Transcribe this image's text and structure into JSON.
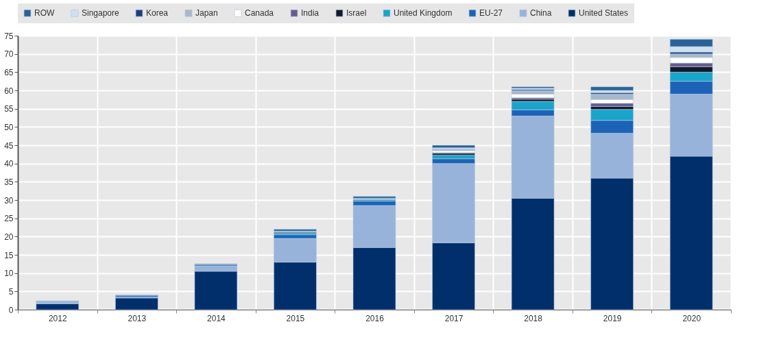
{
  "chart_data": {
    "type": "bar",
    "stacked": true,
    "categories": [
      "2012",
      "2013",
      "2014",
      "2015",
      "2016",
      "2017",
      "2018",
      "2019",
      "2020"
    ],
    "series": [
      {
        "name": "United States",
        "color": "#002f6c",
        "values": [
          1.6,
          3.2,
          10.5,
          13,
          17,
          18.3,
          30.5,
          36,
          42
        ]
      },
      {
        "name": "China",
        "color": "#98b3d9",
        "values": [
          0.4,
          0.2,
          1.5,
          6.5,
          11.5,
          21.7,
          22.5,
          12.3,
          17
        ]
      },
      {
        "name": "EU-27",
        "color": "#1c63b7",
        "values": [
          0.2,
          0.4,
          0.3,
          1,
          1.2,
          1.3,
          1.7,
          3.5,
          3.5
        ]
      },
      {
        "name": "United Kingdom",
        "color": "#1aa4c9",
        "values": [
          0.1,
          0,
          0,
          0.5,
          0.4,
          1,
          2.3,
          3,
          2.5
        ]
      },
      {
        "name": "Israel",
        "color": "#101a2b",
        "values": [
          0,
          0,
          0,
          0.2,
          0,
          0.5,
          0.6,
          0.8,
          1.5
        ]
      },
      {
        "name": "India",
        "color": "#6a5a8e",
        "values": [
          0,
          0,
          0,
          0,
          0,
          0.2,
          0.4,
          0.9,
          1
        ]
      },
      {
        "name": "Canada",
        "color": "#ffffff",
        "values": [
          0,
          0,
          0,
          0,
          0,
          0.5,
          1,
          1,
          1.5
        ]
      },
      {
        "name": "Japan",
        "color": "#a8b8cc",
        "values": [
          0,
          0,
          0,
          0.3,
          0.4,
          0.5,
          1,
          1.5,
          1
        ]
      },
      {
        "name": "Korea",
        "color": "#1f3e7a",
        "values": [
          0,
          0,
          0,
          0,
          0,
          0,
          0.3,
          0.4,
          0.5
        ]
      },
      {
        "name": "Singapore",
        "color": "#cfe0f0",
        "values": [
          0,
          0,
          0,
          0,
          0,
          0.3,
          0.3,
          0.6,
          1.5
        ]
      },
      {
        "name": "ROW",
        "color": "#2a6296",
        "values": [
          0.1,
          0.2,
          0.2,
          0.5,
          0.5,
          0.7,
          0.4,
          1,
          2
        ]
      }
    ],
    "ylim": [
      0,
      75
    ],
    "yticks": [
      0,
      5,
      10,
      15,
      20,
      25,
      30,
      35,
      40,
      45,
      50,
      55,
      60,
      65,
      70,
      75
    ],
    "grid": true,
    "legend": "top"
  }
}
